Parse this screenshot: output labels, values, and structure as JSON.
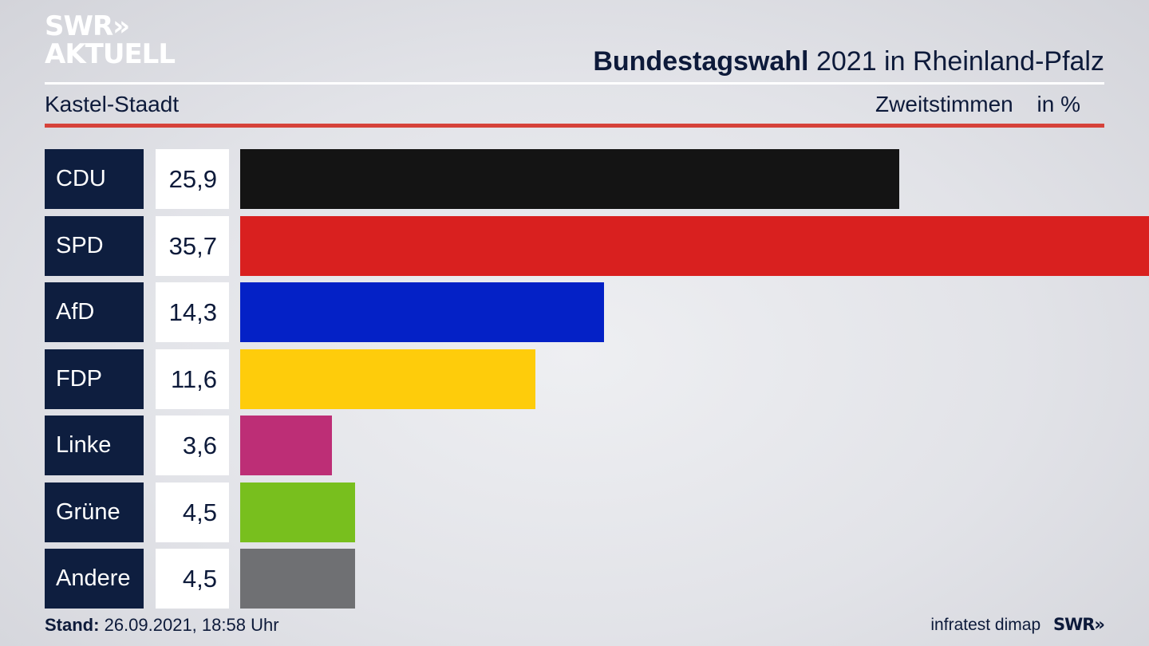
{
  "brand": {
    "line1": "SWR»",
    "line2": "AKTUELL"
  },
  "header": {
    "title_bold": "Bundestagswahl",
    "title_rest": "2021 in Rheinland-Pfalz",
    "subtitle": "Kastel-Staadt",
    "measure": "Zweitstimmen",
    "unit": "in %"
  },
  "chart_data": {
    "type": "bar",
    "orientation": "horizontal",
    "title": "Bundestagswahl 2021 in Rheinland-Pfalz",
    "subtitle": "Kastel-Staadt",
    "xlabel": "Zweitstimmen",
    "unit": "in %",
    "categories": [
      "CDU",
      "SPD",
      "AfD",
      "FDP",
      "Linke",
      "Grüne",
      "Andere"
    ],
    "values": [
      25.9,
      35.7,
      14.3,
      11.6,
      3.6,
      4.5,
      4.5
    ],
    "labels": [
      "25,9",
      "35,7",
      "14,3",
      "11,6",
      "3,6",
      "4,5",
      "4,5"
    ],
    "colors": [
      "#141414",
      "#d9201f",
      "#0421c6",
      "#fecc0b",
      "#bd2e76",
      "#78bf1e",
      "#6f7073"
    ],
    "xlim": [
      0,
      35.7
    ],
    "grid": false,
    "legend": "none"
  },
  "footer": {
    "stand_label": "Stand:",
    "stand_value": "26.09.2021, 18:58 Uhr",
    "source": "infratest dimap",
    "broadcaster": "SWR»"
  }
}
